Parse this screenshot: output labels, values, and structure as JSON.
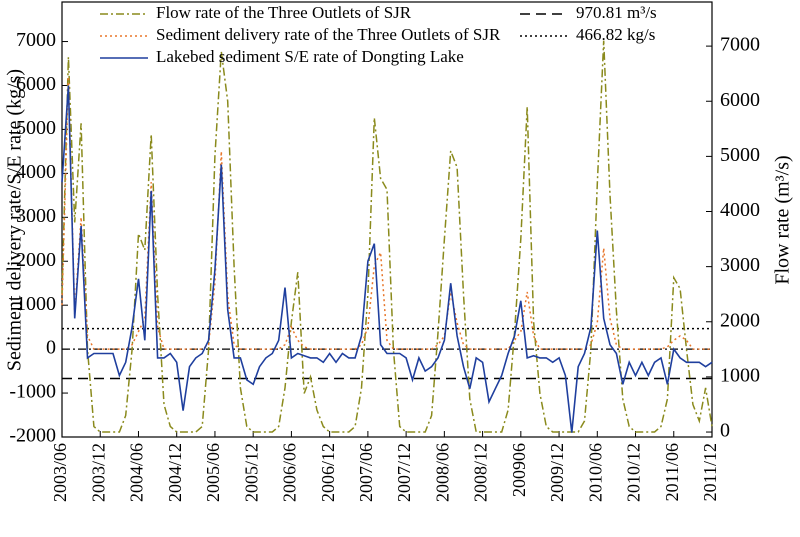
{
  "chart_data": {
    "type": "line",
    "y_label": "Sediment delivery rate/S/E rate (kg/s)",
    "y2_label": "Flow rate (m³/s)",
    "categories": [
      "2003/06",
      null,
      null,
      null,
      null,
      null,
      "2003/12",
      null,
      null,
      null,
      null,
      null,
      "2004/06",
      null,
      null,
      null,
      null,
      null,
      "2004/12",
      null,
      null,
      null,
      null,
      null,
      "2005/06",
      null,
      null,
      null,
      null,
      null,
      "2005/12",
      null,
      null,
      null,
      null,
      null,
      "2006/06",
      null,
      null,
      null,
      null,
      null,
      "2006/12",
      null,
      null,
      null,
      null,
      null,
      "2007/06",
      null,
      null,
      null,
      null,
      null,
      "2007/12",
      null,
      null,
      null,
      null,
      null,
      "2008/06",
      null,
      null,
      null,
      null,
      null,
      "2008/12",
      null,
      null,
      null,
      null,
      null,
      "200906",
      null,
      null,
      null,
      null,
      null,
      "2009/12",
      null,
      null,
      null,
      null,
      null,
      "2010/06",
      null,
      null,
      null,
      null,
      null,
      "2010/12",
      null,
      null,
      null,
      null,
      null,
      "2011/06",
      null,
      null,
      null,
      null,
      null,
      "2011/12"
    ],
    "series": [
      {
        "name": "Flow rate of the Three Outlets of SJR",
        "color": "#8a8a1c",
        "style": "dashdot",
        "axis": "y2",
        "values": [
          2500,
          6800,
          3800,
          5600,
          1500,
          100,
          0,
          0,
          0,
          0,
          300,
          1500,
          3600,
          3300,
          5400,
          2500,
          500,
          100,
          0,
          0,
          0,
          0,
          100,
          1500,
          5000,
          6900,
          6000,
          3000,
          800,
          100,
          0,
          0,
          0,
          0,
          100,
          800,
          2000,
          2900,
          700,
          1000,
          400,
          100,
          0,
          0,
          0,
          0,
          100,
          800,
          2500,
          5700,
          4600,
          4400,
          1500,
          100,
          0,
          0,
          0,
          0,
          300,
          1800,
          3500,
          5100,
          4800,
          2500,
          600,
          0,
          0,
          0,
          0,
          0,
          400,
          1800,
          3500,
          5900,
          2000,
          700,
          100,
          0,
          0,
          0,
          0,
          0,
          200,
          1500,
          4500,
          7100,
          4300,
          2200,
          600,
          100,
          0,
          0,
          0,
          0,
          100,
          600,
          2800,
          2600,
          1500,
          500,
          200,
          800,
          100
        ]
      },
      {
        "name": "Sediment delivery rate of the Three Outlets of SJR",
        "color": "#e8762a",
        "style": "dotted",
        "axis": "y",
        "values": [
          1000,
          6200,
          800,
          3000,
          300,
          0,
          0,
          0,
          0,
          0,
          0,
          100,
          400,
          700,
          3800,
          500,
          0,
          0,
          0,
          0,
          0,
          0,
          0,
          100,
          1500,
          4500,
          1200,
          100,
          0,
          0,
          0,
          0,
          0,
          0,
          0,
          100,
          500,
          200,
          50,
          0,
          0,
          0,
          0,
          0,
          0,
          0,
          0,
          100,
          500,
          1900,
          2200,
          200,
          0,
          0,
          0,
          0,
          0,
          0,
          0,
          100,
          300,
          1300,
          600,
          100,
          0,
          0,
          0,
          0,
          0,
          0,
          0,
          200,
          400,
          1300,
          300,
          0,
          0,
          0,
          0,
          0,
          0,
          0,
          0,
          100,
          600,
          2300,
          700,
          100,
          0,
          0,
          0,
          0,
          0,
          0,
          0,
          50,
          200,
          300,
          200,
          0,
          0,
          0,
          0
        ]
      },
      {
        "name": "Lakebed sediment S/E rate of Dongting Lake",
        "color": "#1f3f9e",
        "style": "solid",
        "axis": "y",
        "values": [
          3800,
          6000,
          700,
          2800,
          -200,
          -100,
          -100,
          -100,
          -100,
          -600,
          -300,
          500,
          1600,
          200,
          3600,
          -200,
          -200,
          -100,
          -300,
          -1400,
          -400,
          -200,
          -100,
          200,
          1800,
          4200,
          900,
          -200,
          -200,
          -700,
          -800,
          -400,
          -200,
          -100,
          200,
          1400,
          -200,
          -100,
          -150,
          -200,
          -200,
          -300,
          -100,
          -300,
          -100,
          -200,
          -200,
          300,
          2000,
          2400,
          100,
          -100,
          -100,
          -100,
          -200,
          -700,
          -200,
          -500,
          -400,
          -200,
          200,
          1500,
          300,
          -400,
          -900,
          -200,
          -300,
          -1200,
          -900,
          -600,
          -100,
          300,
          1100,
          -200,
          -150,
          -200,
          -200,
          -300,
          -200,
          -600,
          -1900,
          -400,
          -100,
          500,
          2700,
          700,
          100,
          -100,
          -800,
          -300,
          -600,
          -300,
          -600,
          -300,
          -200,
          -800,
          0,
          -200,
          -300,
          -300,
          -300,
          -400,
          -300
        ]
      }
    ],
    "reference_lines": [
      {
        "label": "970.81 m³/s",
        "value": 970.81,
        "axis": "y2",
        "style": "dashed",
        "color": "#000000"
      },
      {
        "label": "466.82 kg/s",
        "value": 466.82,
        "axis": "y",
        "style": "dotted",
        "color": "#000000"
      }
    ],
    "ylim": [
      -2000,
      7900
    ],
    "yticks": [
      -2000,
      -1000,
      0,
      1000,
      2000,
      3000,
      4000,
      5000,
      6000,
      7000
    ],
    "y2lim": [
      -90,
      7800
    ],
    "y2ticks": [
      0,
      1000,
      2000,
      3000,
      4000,
      5000,
      6000,
      7000
    ]
  }
}
